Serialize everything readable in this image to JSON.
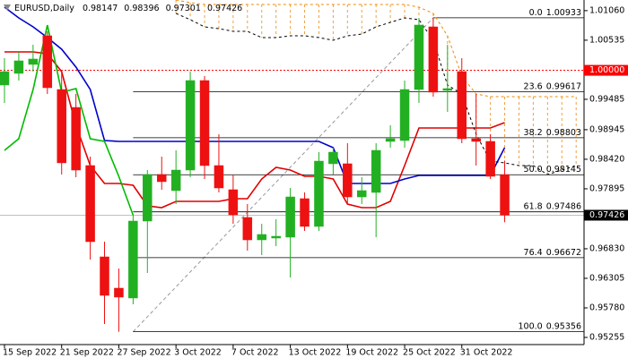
{
  "chart_data": {
    "type": "candlestick",
    "symbol": "EURUSD,Daily",
    "categories": [
      "15 Sep 2022",
      null,
      null,
      null,
      "21 Sep 2022",
      null,
      null,
      null,
      "27 Sep 2022",
      null,
      null,
      null,
      "3 Oct 2022",
      null,
      null,
      null,
      "7 Oct 2022",
      null,
      null,
      null,
      "13 Oct 2022",
      null,
      null,
      null,
      "19 Oct 2022",
      null,
      null,
      null,
      "25 Oct 2022",
      null,
      null,
      null,
      "31 Oct 2022",
      null,
      null,
      null,
      null,
      null,
      null,
      null,
      null
    ],
    "open": [
      0.99739,
      0.99946,
      1.00105,
      1.00613,
      0.99659,
      0.99341,
      0.98308,
      0.96686,
      0.9613,
      0.95955,
      0.97322,
      0.98149,
      0.97863,
      0.98228,
      0.99818,
      0.98308,
      0.97879,
      0.97386,
      0.96988,
      0.9702,
      0.97036,
      0.9772,
      0.97227,
      0.9834,
      0.9834,
      0.97751,
      0.97831,
      0.98737,
      0.98753,
      0.99659,
      1.00772,
      0.99643,
      0.99977,
      0.98785,
      0.98737,
      0.98147,
      null,
      null,
      null,
      null,
      null
    ],
    "high": [
      1.00216,
      1.00327,
      1.00454,
      1.00693,
      0.99977,
      0.9958,
      0.98467,
      0.96956,
      0.96479,
      0.97433,
      0.98228,
      0.98467,
      0.98578,
      0.99977,
      0.99898,
      0.98864,
      0.98149,
      0.97624,
      0.97274,
      0.97354,
      0.9791,
      0.97831,
      0.98546,
      0.98626,
      0.98705,
      0.98101,
      0.98705,
      0.99023,
      0.99818,
      1.00931,
      1.00933,
      1.00454,
      1.00216,
      0.9958,
      0.98864,
      0.98396,
      null,
      null,
      null,
      null,
      null
    ],
    "low": [
      0.99421,
      0.99818,
      0.99977,
      0.9958,
      0.98149,
      0.98101,
      0.96638,
      0.95494,
      0.95356,
      0.95843,
      0.964,
      0.97879,
      0.97624,
      0.98101,
      0.98069,
      0.97831,
      0.97274,
      0.96797,
      0.96718,
      0.96877,
      0.9632,
      0.97147,
      0.97147,
      0.98149,
      0.97624,
      0.97624,
      0.97036,
      0.98626,
      0.98626,
      0.99421,
      0.99532,
      0.99262,
      0.98705,
      0.98308,
      0.98069,
      0.97301,
      null,
      null,
      null,
      null,
      null
    ],
    "close": [
      0.99977,
      1.00168,
      1.002,
      0.99691,
      0.98356,
      0.98228,
      0.96956,
      0.96002,
      0.95971,
      0.97322,
      0.98149,
      0.98022,
      0.98228,
      0.99818,
      0.98308,
      0.9791,
      0.97433,
      0.96988,
      0.97084,
      0.97052,
      0.97751,
      0.97227,
      0.98387,
      0.98546,
      0.97751,
      0.97863,
      0.98578,
      0.98785,
      0.99659,
      1.00804,
      0.99612,
      0.99675,
      0.98785,
      0.98737,
      0.98117,
      0.97426,
      null,
      null,
      null,
      null,
      null
    ],
    "bull_color": "#22b022",
    "bear_color": "#ee1111",
    "series": [
      {
        "color": "#e00000",
        "values": [
          1.00327,
          1.00327,
          1.00327,
          1.00295,
          0.99977,
          0.99023,
          0.98308,
          0.9799,
          0.9799,
          0.97958,
          0.97592,
          0.97561,
          0.97672,
          0.97672,
          0.97672,
          0.97672,
          0.9772,
          0.9772,
          0.98069,
          0.98276,
          0.98228,
          0.98117,
          0.98117,
          0.98069,
          0.97624,
          0.97561,
          0.97561,
          0.97672,
          0.98308,
          0.98976,
          0.98976,
          0.98976,
          0.98976,
          0.98976,
          0.98976,
          0.99071,
          null,
          null,
          null,
          null,
          null
        ]
      },
      {
        "color": "#0000cc",
        "values": [
          1.01122,
          1.00931,
          1.00772,
          1.00582,
          1.00375,
          1.00057,
          0.99659,
          0.98753,
          0.98737,
          0.98737,
          0.98737,
          0.98737,
          0.98737,
          0.98737,
          0.98737,
          0.98737,
          0.98737,
          0.98737,
          0.98737,
          0.98737,
          0.98737,
          0.98737,
          0.98737,
          0.98626,
          0.9799,
          0.9799,
          0.9799,
          0.9799,
          0.98069,
          0.98133,
          0.98133,
          0.98133,
          0.98133,
          0.98133,
          0.98133,
          0.98626,
          null,
          null,
          null,
          null,
          null
        ]
      },
      {
        "color": "#00bb00",
        "values": [
          0.98578,
          0.98785,
          0.99659,
          1.00804,
          0.99612,
          0.99675,
          0.98785,
          0.98737,
          0.98117,
          0.97426,
          null,
          null,
          null,
          null,
          null,
          null,
          null,
          null,
          null,
          null,
          null,
          null,
          null,
          null,
          null,
          null,
          null,
          null,
          null,
          null,
          null,
          null,
          null,
          null,
          null,
          null,
          null,
          null,
          null,
          null,
          null
        ]
      },
      {
        "color": "#f08a00",
        "dash": "3,3",
        "values": [
          null,
          null,
          null,
          null,
          null,
          null,
          null,
          null,
          null,
          null,
          null,
          null,
          1.01249,
          1.01202,
          1.0117,
          1.0117,
          1.0117,
          1.0117,
          1.0117,
          1.0117,
          1.0117,
          1.0117,
          1.0117,
          1.0117,
          1.0117,
          1.0117,
          1.0117,
          1.0117,
          1.0117,
          1.01122,
          1.01011,
          1.00613,
          0.99898,
          0.9958,
          0.99532,
          0.99532,
          0.99532,
          0.99532,
          0.99532,
          0.99532,
          0.99532
        ]
      },
      {
        "color": "#000000",
        "dash": "3,3",
        "values": [
          null,
          null,
          null,
          null,
          null,
          null,
          null,
          null,
          null,
          null,
          null,
          null,
          1.01011,
          1.009,
          1.00772,
          1.00741,
          1.00693,
          1.00693,
          1.00582,
          1.00582,
          1.00613,
          1.00613,
          1.00582,
          1.00534,
          1.00613,
          1.00645,
          1.00772,
          1.00852,
          1.00931,
          1.009,
          1.00534,
          0.99739,
          0.9958,
          0.98864,
          0.98387,
          0.98356,
          0.98308,
          0.98308,
          0.98149,
          0.98228,
          0.98308
        ]
      }
    ],
    "cloud_color": "#f0a040",
    "fibonacci": [
      {
        "ratio": "0.0",
        "price": 1.00933
      },
      {
        "ratio": "23.6",
        "price": 0.99617
      },
      {
        "ratio": "38.2",
        "price": 0.98803
      },
      {
        "ratio": "50.0",
        "price": 0.98145
      },
      {
        "ratio": "61.8",
        "price": 0.97486
      },
      {
        "ratio": "76.4",
        "price": 0.96672
      },
      {
        "ratio": "100.0",
        "price": 0.95356
      }
    ],
    "price_level": {
      "value": 1,
      "label": "1.00000",
      "color": "#ff0000"
    },
    "ylim": [
      0.95128,
      1.01249
    ],
    "yticks": [
      {
        "value": 1.0106,
        "label": "1.01060"
      },
      1.00535,
      0.99485,
      0.98945,
      {
        "value": 0.9842,
        "label": "0.98420"
      },
      0.97895,
      {
        "value": 0.9683,
        "label": "0.96830"
      },
      0.96305,
      {
        "value": 0.9578,
        "label": "0.95780"
      },
      0.95255
    ]
  }
}
